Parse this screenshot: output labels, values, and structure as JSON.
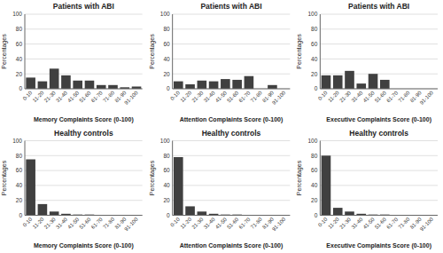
{
  "chart_data": [
    {
      "type": "bar",
      "title": "Patients with ABI",
      "xlabel": "Memory Complaints Score (0-100)",
      "ylabel": "Percentages",
      "categories": [
        "0-10",
        "11-20",
        "21-30",
        "31-40",
        "41-50",
        "51-60",
        "61-70",
        "71-80",
        "81-90",
        "91-100"
      ],
      "values": [
        15,
        10,
        27,
        18,
        11,
        11,
        5,
        5,
        2,
        3
      ],
      "color": "#404040",
      "ylim": [
        0,
        100
      ],
      "yticks": [
        0,
        20,
        40,
        60,
        80,
        100
      ],
      "grid": true
    },
    {
      "type": "bar",
      "title": "Patients with ABI",
      "xlabel": "Attention Complaints Score (0-100)",
      "ylabel": "Percentages",
      "categories": [
        "0-10",
        "11-20",
        "21-30",
        "31-40",
        "41-50",
        "51-60",
        "61-70",
        "71-80",
        "81-90",
        "91-100"
      ],
      "values": [
        10,
        6,
        11,
        10,
        13,
        12,
        17,
        0,
        5,
        0
      ],
      "color": "#404040",
      "ylim": [
        0,
        100
      ],
      "yticks": [
        0,
        20,
        40,
        60,
        80,
        100
      ],
      "grid": true
    },
    {
      "type": "bar",
      "title": "Patients with ABI",
      "xlabel": "Executive Complaints Score (0-100)",
      "ylabel": "Percentages",
      "categories": [
        "0-10",
        "11-20",
        "21-30",
        "31-40",
        "41-50",
        "51-60",
        "61-70",
        "71-80",
        "81-90",
        "91-100"
      ],
      "values": [
        18,
        18,
        24,
        7,
        20,
        12,
        0,
        0,
        0,
        0
      ],
      "color": "#404040",
      "ylim": [
        0,
        100
      ],
      "yticks": [
        0,
        20,
        40,
        60,
        80,
        100
      ],
      "grid": true
    },
    {
      "type": "bar",
      "title": "Healthy controls",
      "xlabel": "Memory Complaints Score (0-100)",
      "ylabel": "Percentages",
      "categories": [
        "0-10",
        "11-20",
        "21-30",
        "31-40",
        "41-50",
        "51-60",
        "61-70",
        "71-80",
        "81-90",
        "91-100"
      ],
      "values": [
        75,
        15,
        5,
        2,
        1,
        1,
        0,
        0,
        0,
        0
      ],
      "color": "#404040",
      "ylim": [
        0,
        100
      ],
      "yticks": [
        0,
        20,
        40,
        60,
        80,
        100
      ],
      "grid": true
    },
    {
      "type": "bar",
      "title": "Healthy controls",
      "xlabel": "Attention Complaints Score (0-100)",
      "ylabel": "Percentages",
      "categories": [
        "0-10",
        "11-20",
        "21-30",
        "31-40",
        "41-50",
        "51-60",
        "61-70",
        "71-80",
        "81-90",
        "91-100"
      ],
      "values": [
        78,
        12,
        5,
        2,
        1,
        1,
        0,
        0,
        0,
        0
      ],
      "color": "#404040",
      "ylim": [
        0,
        100
      ],
      "yticks": [
        0,
        20,
        40,
        60,
        80,
        100
      ],
      "grid": true
    },
    {
      "type": "bar",
      "title": "Healthy controls",
      "xlabel": "Executive Complaints Score (0-100)",
      "ylabel": "Percentages",
      "categories": [
        "0-10",
        "11-20",
        "21-30",
        "31-40",
        "41-50",
        "51-60",
        "61-70",
        "71-80",
        "81-90",
        "91-100"
      ],
      "values": [
        80,
        10,
        5,
        2,
        1,
        1,
        0,
        0,
        0,
        0
      ],
      "color": "#404040",
      "ylim": [
        0,
        100
      ],
      "yticks": [
        0,
        20,
        40,
        60,
        80,
        100
      ],
      "grid": true
    }
  ]
}
